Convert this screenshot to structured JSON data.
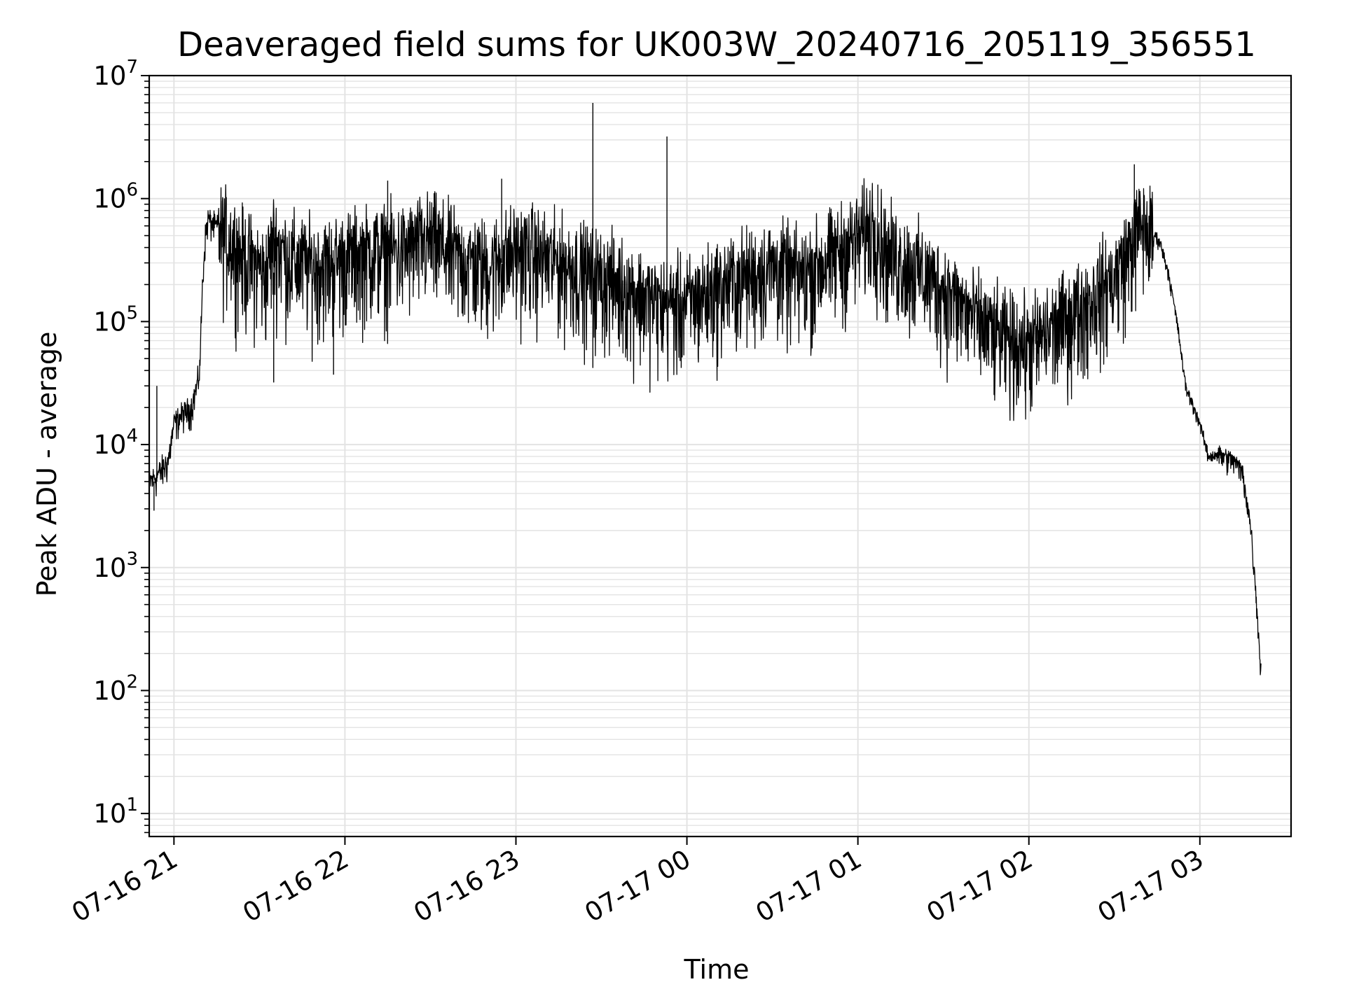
{
  "chart_data": {
    "type": "line",
    "title": "Deaveraged field sums for UK003W_20240716_205119_356551",
    "xlabel": "Time",
    "ylabel": "Peak ADU - average",
    "yscale": "log",
    "xlim": [
      "2024-07-16T20:51:19",
      "2024-07-17T03:32:00"
    ],
    "ylim": [
      6.5,
      10000000
    ],
    "y_ticks": [
      {
        "base": "10",
        "exp": "1",
        "value": 10
      },
      {
        "base": "10",
        "exp": "2",
        "value": 100
      },
      {
        "base": "10",
        "exp": "3",
        "value": 1000
      },
      {
        "base": "10",
        "exp": "4",
        "value": 10000
      },
      {
        "base": "10",
        "exp": "5",
        "value": 100000
      },
      {
        "base": "10",
        "exp": "6",
        "value": 1000000
      },
      {
        "base": "10",
        "exp": "7",
        "value": 10000000
      }
    ],
    "x_ticks": [
      {
        "label": "07-16 21",
        "value": "2024-07-16T21:00:00"
      },
      {
        "label": "07-16 22",
        "value": "2024-07-16T22:00:00"
      },
      {
        "label": "07-16 23",
        "value": "2024-07-16T23:00:00"
      },
      {
        "label": "07-17 00",
        "value": "2024-07-17T00:00:00"
      },
      {
        "label": "07-17 01",
        "value": "2024-07-17T01:00:00"
      },
      {
        "label": "07-17 02",
        "value": "2024-07-17T02:00:00"
      },
      {
        "label": "07-17 03",
        "value": "2024-07-17T03:00:00"
      }
    ],
    "grid": true,
    "line_color": "#000000",
    "grid_color": "#e3e3e3",
    "series": [
      {
        "x": [
          "2024-07-16T20:51:19",
          "2024-07-16T20:55:00",
          "2024-07-16T20:58:00",
          "2024-07-16T21:00:00",
          "2024-07-16T21:03:00",
          "2024-07-16T21:06:00",
          "2024-07-16T21:08:00",
          "2024-07-16T21:09:00",
          "2024-07-16T21:10:00",
          "2024-07-16T21:11:00",
          "2024-07-16T21:12:00",
          "2024-07-16T21:13:00",
          "2024-07-16T21:15:00",
          "2024-07-16T21:20:00",
          "2024-07-16T21:25:00",
          "2024-07-16T21:30:00",
          "2024-07-16T21:32:00",
          "2024-07-16T21:35:00",
          "2024-07-16T21:40:00",
          "2024-07-16T21:50:00",
          "2024-07-16T22:00:00",
          "2024-07-16T22:10:00",
          "2024-07-16T22:20:00",
          "2024-07-16T22:30:00",
          "2024-07-16T22:40:00",
          "2024-07-16T22:50:00",
          "2024-07-16T22:55:00",
          "2024-07-16T23:00:00",
          "2024-07-16T23:05:00",
          "2024-07-16T23:10:00",
          "2024-07-16T23:20:00",
          "2024-07-16T23:30:00",
          "2024-07-16T23:40:00",
          "2024-07-16T23:50:00",
          "2024-07-17T00:00:00",
          "2024-07-17T00:10:00",
          "2024-07-17T00:20:00",
          "2024-07-17T00:30:00",
          "2024-07-17T00:40:00",
          "2024-07-17T00:50:00",
          "2024-07-17T01:00:00",
          "2024-07-17T01:05:00",
          "2024-07-17T01:10:00",
          "2024-07-17T01:20:00",
          "2024-07-17T01:30:00",
          "2024-07-17T01:40:00",
          "2024-07-17T01:50:00",
          "2024-07-17T02:00:00",
          "2024-07-17T02:10:00",
          "2024-07-17T02:20:00",
          "2024-07-17T02:30:00",
          "2024-07-17T02:35:00",
          "2024-07-17T02:38:00",
          "2024-07-17T02:40:00",
          "2024-07-17T02:43:00",
          "2024-07-17T02:46:00",
          "2024-07-17T02:49:00",
          "2024-07-17T02:52:00",
          "2024-07-17T02:55:00",
          "2024-07-17T02:58:00",
          "2024-07-17T03:00:00",
          "2024-07-17T03:03:00",
          "2024-07-17T03:06:00",
          "2024-07-17T03:09:00",
          "2024-07-17T03:12:00",
          "2024-07-17T03:15:00",
          "2024-07-17T03:17:00",
          "2024-07-17T03:18:00",
          "2024-07-17T03:19:00",
          "2024-07-17T03:20:00",
          "2024-07-17T03:21:00",
          "2024-07-17T03:21:30"
        ],
        "values": [
          5000,
          6000,
          7500,
          15000,
          18000,
          20000,
          30000,
          40000,
          200000,
          500000,
          700000,
          650000,
          600000,
          500000,
          350000,
          300000,
          250000,
          500000,
          350000,
          300000,
          350000,
          400000,
          400000,
          500000,
          350000,
          300000,
          350000,
          400000,
          400000,
          350000,
          300000,
          250000,
          200000,
          150000,
          150000,
          200000,
          250000,
          300000,
          250000,
          350000,
          500000,
          700000,
          400000,
          300000,
          200000,
          120000,
          80000,
          70000,
          100000,
          150000,
          250000,
          400000,
          600000,
          650000,
          550000,
          450000,
          250000,
          100000,
          30000,
          20000,
          15000,
          8000,
          8500,
          8000,
          7500,
          6000,
          3000,
          2000,
          1000,
          500,
          200,
          150
        ],
        "spikes": [
          {
            "x": "2024-07-16T22:15:00",
            "value": 1400000
          },
          {
            "x": "2024-07-16T22:55:00",
            "value": 1450000
          },
          {
            "x": "2024-07-16T23:27:00",
            "value": 6000000
          },
          {
            "x": "2024-07-16T23:53:00",
            "value": 3200000
          },
          {
            "x": "2024-07-17T01:07:00",
            "value": 1300000
          },
          {
            "x": "2024-07-17T02:37:00",
            "value": 1900000
          },
          {
            "x": "2024-07-16T21:35:00",
            "value": 32000
          },
          {
            "x": "2024-07-16T21:56:00",
            "value": 37000
          },
          {
            "x": "2024-07-16T23:27:00",
            "value": 42000
          },
          {
            "x": "2024-07-16T23:58:00",
            "value": 42000
          },
          {
            "x": "2024-07-17T02:03:00",
            "value": 42000
          },
          {
            "x": "2024-07-16T20:53:00",
            "value": 2900
          },
          {
            "x": "2024-07-16T20:54:00",
            "value": 30000
          }
        ]
      }
    ]
  }
}
